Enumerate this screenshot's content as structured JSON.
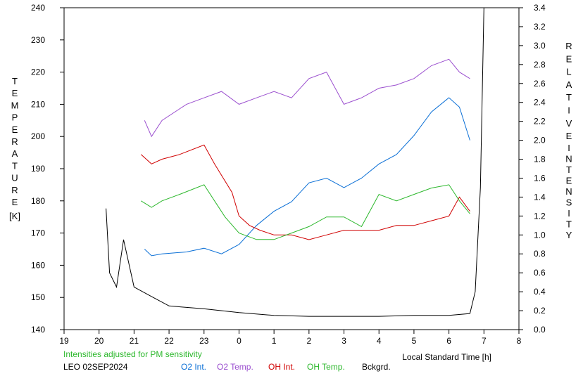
{
  "chart_data": {
    "type": "line",
    "xlabel": "Local Standard Time [h]",
    "ylabel_left": "TEMPERATURE [K]",
    "ylabel_right": "RELATIVE INTENSITY",
    "ylabel_left_letters": [
      "T",
      "E",
      "M",
      "P",
      "E",
      "R",
      "A",
      "T",
      "U",
      "R",
      "E"
    ],
    "ylabel_left_unit": "[K]",
    "ylabel_right_word1": [
      "R",
      "E",
      "L",
      "A",
      "T",
      "I",
      "V",
      "E"
    ],
    "ylabel_right_word2": [
      "I",
      "N",
      "T",
      "E",
      "N",
      "S",
      "I",
      "T",
      "Y"
    ],
    "x_tick_labels": [
      "19",
      "20",
      "21",
      "22",
      "23",
      "0",
      "1",
      "2",
      "3",
      "4",
      "5",
      "6",
      "7",
      "8"
    ],
    "x_tick_values": [
      19,
      20,
      21,
      22,
      23,
      24,
      25,
      26,
      27,
      28,
      29,
      30,
      31,
      32
    ],
    "xlim": [
      19,
      32
    ],
    "ylim_left": [
      140,
      240
    ],
    "y_left_ticks": [
      140,
      150,
      160,
      170,
      180,
      190,
      200,
      210,
      220,
      230,
      240
    ],
    "ylim_right": [
      0.0,
      3.4
    ],
    "y_right_ticks": [
      "0.0",
      "0.2",
      "0.4",
      "0.6",
      "0.8",
      "1.0",
      "1.2",
      "1.4",
      "1.6",
      "1.8",
      "2.0",
      "2.2",
      "2.4",
      "2.6",
      "2.8",
      "3.0",
      "3.2",
      "3.4"
    ],
    "note": "Intensities adjusted for PM sensitivity",
    "station_date": "LEO 02SEP2024",
    "grid": false,
    "legend_position": "bottom",
    "series": [
      {
        "name": "O2 Int.",
        "color": "#0a6fd6",
        "axis": "right",
        "x": [
          21.3,
          21.5,
          21.8,
          22.5,
          23.0,
          23.5,
          24.0,
          24.5,
          25.0,
          25.5,
          26.0,
          26.5,
          27.0,
          27.5,
          28.0,
          28.5,
          29.0,
          29.5,
          30.0,
          30.3,
          30.6
        ],
        "y": [
          0.85,
          0.78,
          0.8,
          0.82,
          0.86,
          0.8,
          0.9,
          1.1,
          1.25,
          1.35,
          1.55,
          1.6,
          1.5,
          1.6,
          1.75,
          1.85,
          2.05,
          2.3,
          2.45,
          2.35,
          2.0
        ]
      },
      {
        "name": "O2 Temp.",
        "color": "#9b4fcf",
        "axis": "left",
        "x": [
          21.3,
          21.5,
          21.8,
          22.5,
          23.0,
          23.5,
          24.0,
          24.5,
          25.0,
          25.5,
          26.0,
          26.5,
          27.0,
          27.5,
          28.0,
          28.5,
          29.0,
          29.5,
          30.0,
          30.3,
          30.6
        ],
        "y": [
          205,
          200,
          205,
          210,
          212,
          214,
          210,
          212,
          214,
          212,
          218,
          220,
          210,
          212,
          215,
          216,
          218,
          222,
          224,
          220,
          218
        ]
      },
      {
        "name": "OH Int.",
        "color": "#d00000",
        "axis": "right",
        "x": [
          21.2,
          21.5,
          21.8,
          22.3,
          23.0,
          23.3,
          23.8,
          24.0,
          24.3,
          24.6,
          25.0,
          25.5,
          26.0,
          26.5,
          27.0,
          27.5,
          28.0,
          28.5,
          29.0,
          29.5,
          30.0,
          30.3,
          30.6
        ],
        "y": [
          1.85,
          1.75,
          1.8,
          1.85,
          1.95,
          1.75,
          1.45,
          1.2,
          1.1,
          1.05,
          1.0,
          1.0,
          0.95,
          1.0,
          1.05,
          1.05,
          1.05,
          1.1,
          1.1,
          1.15,
          1.2,
          1.4,
          1.25
        ]
      },
      {
        "name": "OH Temp.",
        "color": "#2db82d",
        "axis": "left",
        "x": [
          21.2,
          21.5,
          21.8,
          22.3,
          23.0,
          23.3,
          23.6,
          24.0,
          24.5,
          25.0,
          25.5,
          26.0,
          26.5,
          27.0,
          27.5,
          28.0,
          28.5,
          29.0,
          29.5,
          30.0,
          30.3,
          30.6
        ],
        "y": [
          180,
          178,
          180,
          182,
          185,
          180,
          175,
          170,
          168,
          168,
          170,
          172,
          175,
          175,
          172,
          182,
          180,
          182,
          184,
          185,
          180,
          176
        ]
      },
      {
        "name": "Bckgrd.",
        "color": "#000000",
        "axis": "right",
        "x": [
          20.2,
          20.3,
          20.5,
          20.7,
          21.0,
          21.5,
          22.0,
          23.0,
          24.0,
          25.0,
          26.0,
          27.0,
          28.0,
          29.0,
          30.0,
          30.6,
          30.75,
          30.9,
          31.0
        ],
        "y": [
          1.28,
          0.6,
          0.45,
          0.95,
          0.45,
          0.35,
          0.25,
          0.22,
          0.18,
          0.15,
          0.14,
          0.14,
          0.14,
          0.15,
          0.15,
          0.17,
          0.4,
          1.5,
          3.4
        ]
      }
    ]
  }
}
